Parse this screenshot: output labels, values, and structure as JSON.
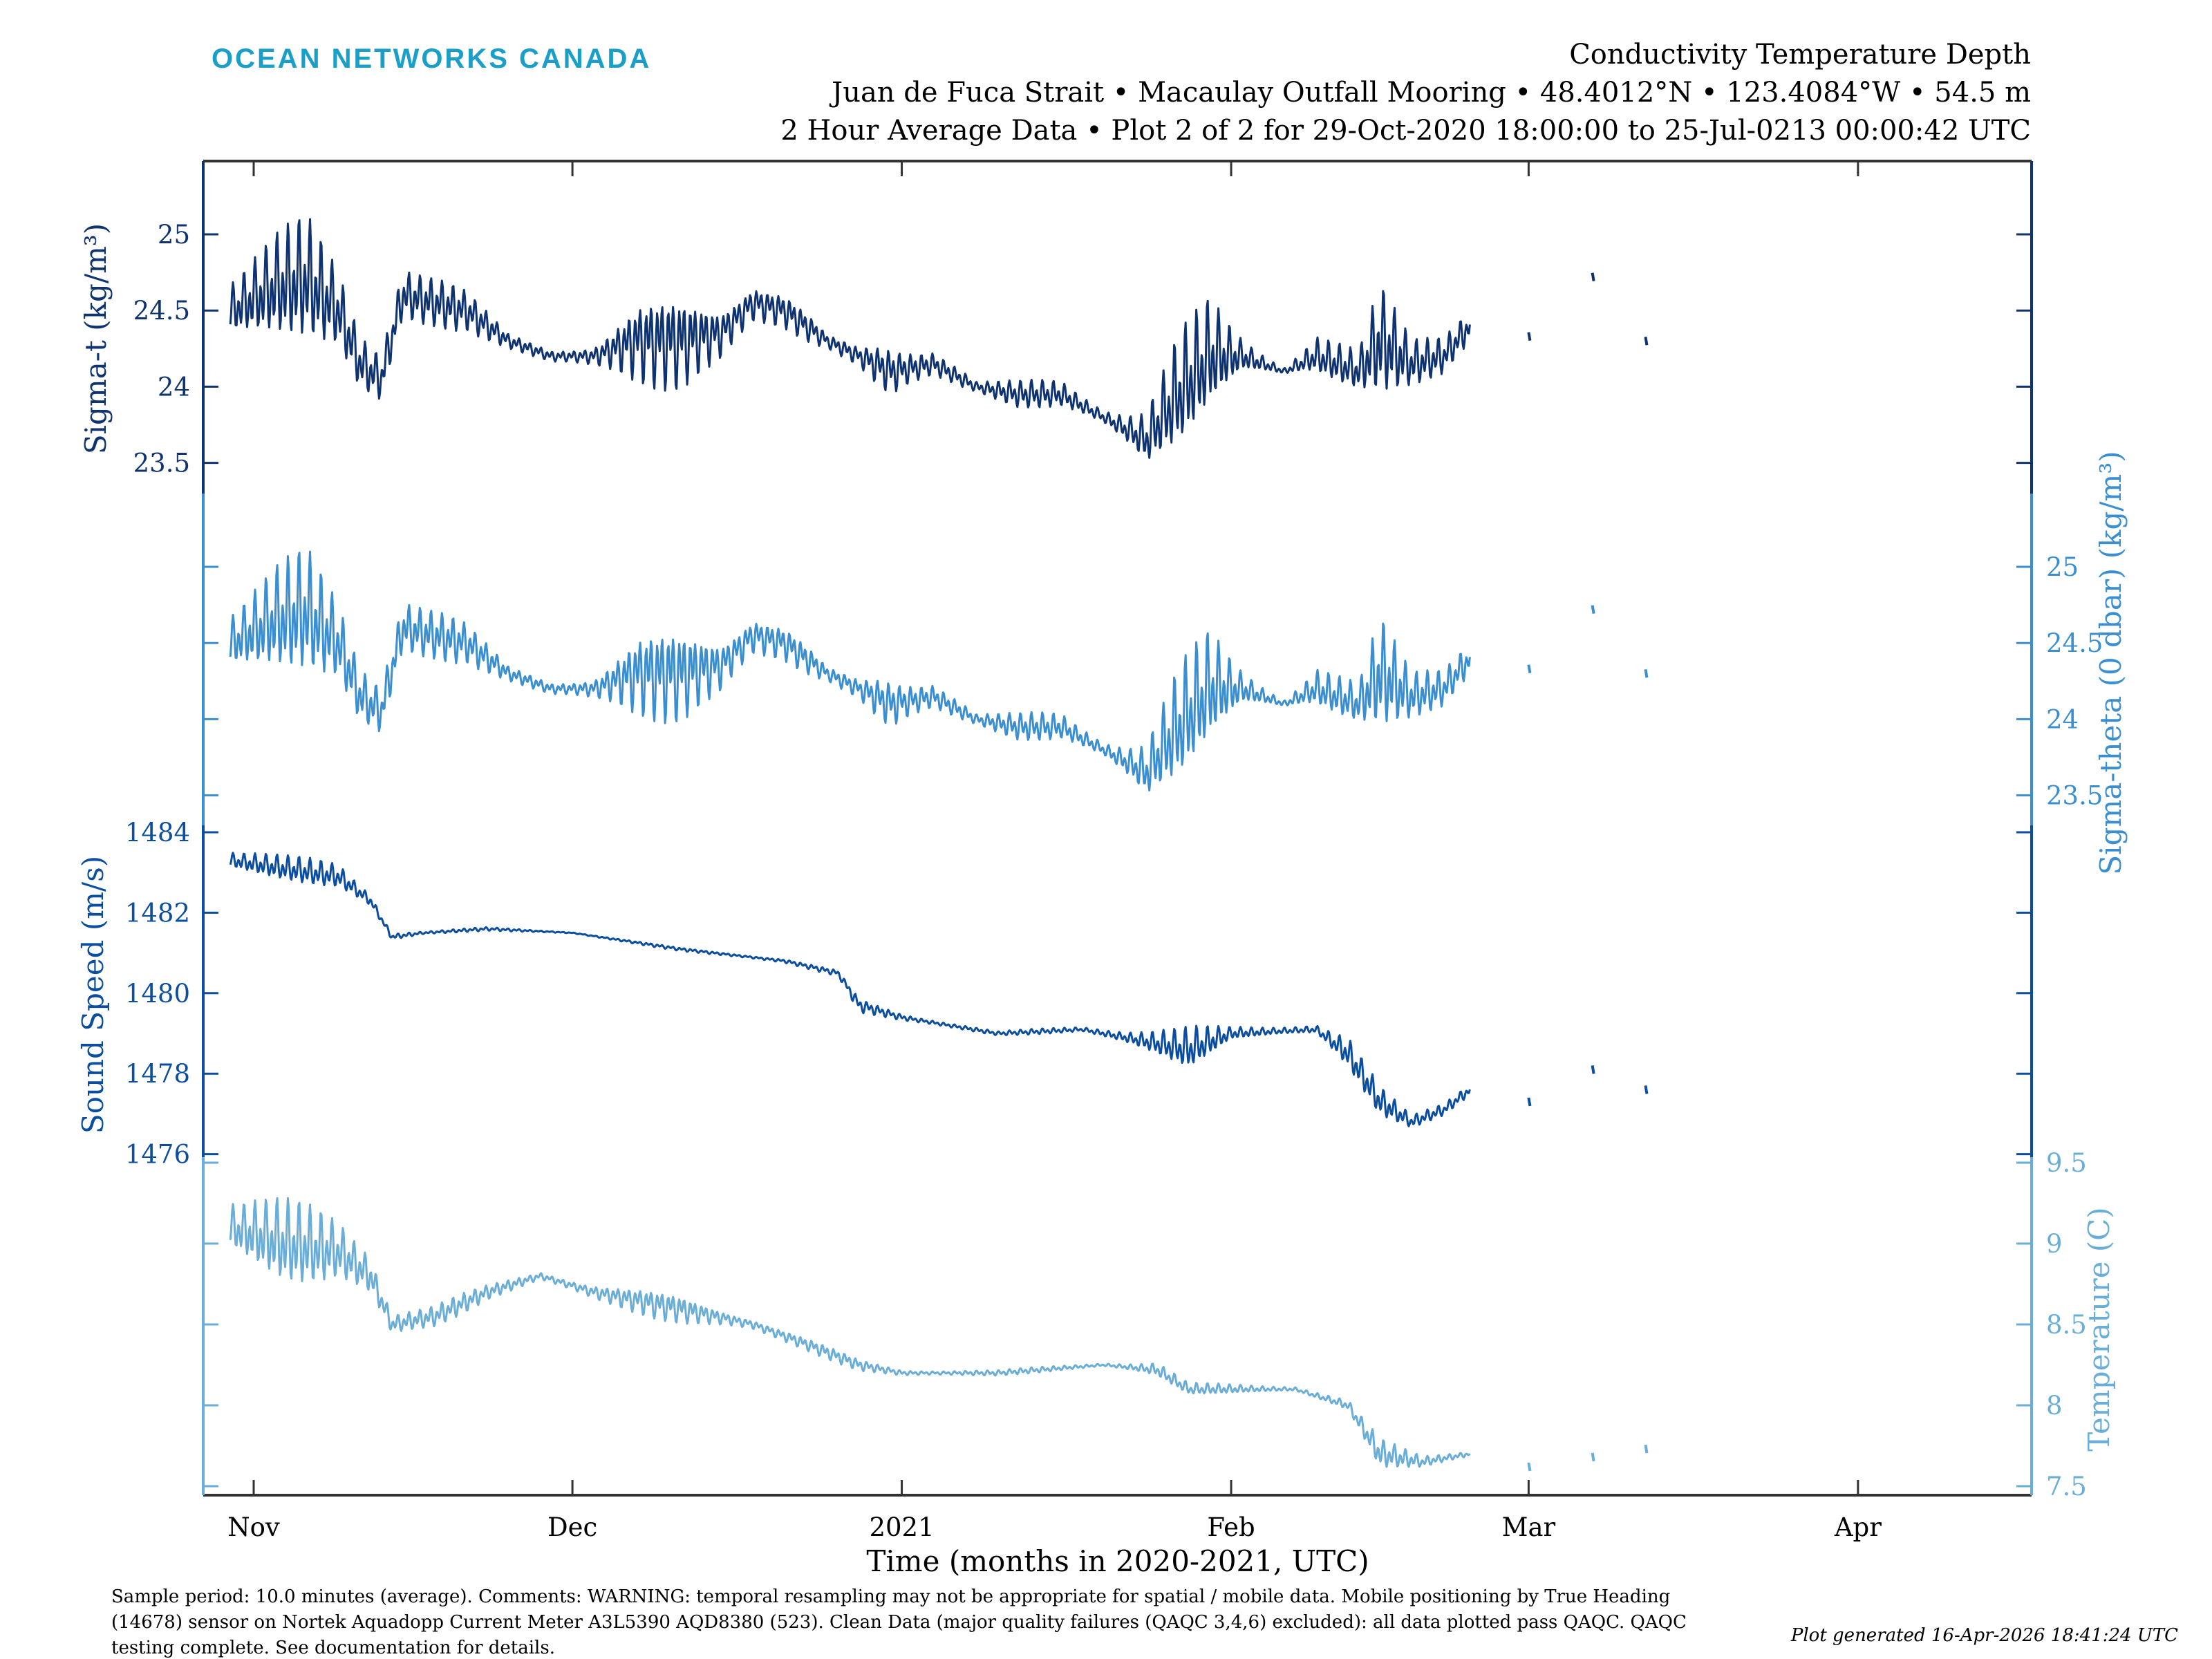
{
  "header": {
    "logo_text": "OCEAN NETWORKS CANADA",
    "title": "Conductivity Temperature Depth",
    "subtitle": "Juan de Fuca Strait • Macaulay Outfall Mooring • 48.4012°N • 123.4084°W • 54.5 m",
    "subtitle2": "2 Hour Average Data • Plot 2 of 2 for 29-Oct-2020 18:00:00 to 25-Jul-0213 00:00:42 UTC"
  },
  "footer": {
    "line1": "Sample period: 10.0 minutes (average). Comments: WARNING: temporal resampling may not be appropriate for spatial / mobile data. Mobile positioning by True Heading",
    "line2": "(14678) sensor on Nortek Aquadopp Current Meter A3L5390 AQD8380 (523). Clean Data (major quality failures (QAQC 3,4,6) excluded): all data plotted pass QAQC. QAQC",
    "line3": "testing complete. See documentation for details.",
    "generated": "Plot generated 16-Apr-2026 18:41:24 UTC"
  },
  "colors": {
    "logo": "#1a9fc8",
    "sigma_t": "#0e3370",
    "sigma_theta": "#3b8fd0",
    "sound_speed": "#0b4d9e",
    "temperature": "#6aaed8",
    "frame": "#333333"
  },
  "chart_data": {
    "type": "line",
    "xlabel": "Time (months in 2020-2021, UTC)",
    "x_units": "days since 2020-11-01",
    "xlim": [
      -4.8,
      167.5
    ],
    "x_ticks": [
      {
        "day": 0,
        "label": "Nov"
      },
      {
        "day": 30,
        "label": "Dec"
      },
      {
        "day": 61,
        "label": "2021"
      },
      {
        "day": 92,
        "label": "Feb"
      },
      {
        "day": 120,
        "label": "Mar"
      },
      {
        "day": 151,
        "label": "Apr"
      }
    ],
    "series": [
      {
        "key": "sigma_t",
        "name": "Sigma-t",
        "ylabel": "Sigma-t (kg/m³)",
        "axis_side": "left",
        "ticks": [
          "25",
          "24.5",
          "24",
          "23.5"
        ],
        "points_day_mean_amplitude": [
          [
            -2.2,
            24.5,
            0.35
          ],
          [
            2,
            24.65,
            0.4
          ],
          [
            5,
            24.7,
            0.45
          ],
          [
            8,
            24.5,
            0.35
          ],
          [
            10,
            24.15,
            0.35
          ],
          [
            12,
            24.05,
            0.4
          ],
          [
            14,
            24.6,
            0.4
          ],
          [
            17,
            24.55,
            0.25
          ],
          [
            20,
            24.5,
            0.15
          ],
          [
            24,
            24.3,
            0.06
          ],
          [
            28,
            24.2,
            0.08
          ],
          [
            32,
            24.2,
            0.12
          ],
          [
            36,
            24.3,
            0.3
          ],
          [
            40,
            24.3,
            0.35
          ],
          [
            44,
            24.35,
            0.3
          ],
          [
            47,
            24.55,
            0.3
          ],
          [
            50,
            24.5,
            0.2
          ],
          [
            54,
            24.3,
            0.05
          ],
          [
            57,
            24.2,
            0.07
          ],
          [
            60,
            24.1,
            0.25
          ],
          [
            64,
            24.15,
            0.2
          ],
          [
            68,
            24.0,
            0.05
          ],
          [
            72,
            23.95,
            0.1
          ],
          [
            76,
            23.95,
            0.12
          ],
          [
            80,
            23.8,
            0.1
          ],
          [
            84,
            23.65,
            0.3
          ],
          [
            87,
            23.95,
            0.45
          ],
          [
            90,
            24.2,
            0.4
          ],
          [
            93,
            24.2,
            0.15
          ],
          [
            97,
            24.1,
            0.05
          ],
          [
            100,
            24.2,
            0.25
          ],
          [
            104,
            24.1,
            0.15
          ],
          [
            106,
            24.3,
            0.4
          ],
          [
            109,
            24.15,
            0.2
          ],
          [
            112,
            24.2,
            0.25
          ],
          [
            114.5,
            24.4,
            0.3
          ]
        ],
        "sporadic": [
          [
            120,
            24.33
          ],
          [
            126,
            24.72
          ],
          [
            131,
            24.3
          ]
        ]
      },
      {
        "key": "sigma_theta",
        "name": "Sigma-theta (0 dbar)",
        "ylabel": "Sigma-theta (0 dbar) (kg/m³)",
        "axis_side": "right",
        "ticks": [
          "25",
          "24.5",
          "24",
          "23.5"
        ],
        "points_day_mean_amplitude": [
          [
            -2.2,
            24.5,
            0.35
          ],
          [
            2,
            24.65,
            0.4
          ],
          [
            5,
            24.7,
            0.45
          ],
          [
            8,
            24.5,
            0.35
          ],
          [
            10,
            24.15,
            0.35
          ],
          [
            12,
            24.05,
            0.4
          ],
          [
            14,
            24.6,
            0.4
          ],
          [
            17,
            24.55,
            0.25
          ],
          [
            20,
            24.5,
            0.15
          ],
          [
            24,
            24.3,
            0.06
          ],
          [
            28,
            24.2,
            0.08
          ],
          [
            32,
            24.2,
            0.12
          ],
          [
            36,
            24.3,
            0.3
          ],
          [
            40,
            24.3,
            0.35
          ],
          [
            44,
            24.35,
            0.3
          ],
          [
            47,
            24.55,
            0.3
          ],
          [
            50,
            24.5,
            0.2
          ],
          [
            54,
            24.3,
            0.05
          ],
          [
            57,
            24.2,
            0.07
          ],
          [
            60,
            24.1,
            0.25
          ],
          [
            64,
            24.15,
            0.2
          ],
          [
            68,
            24.0,
            0.05
          ],
          [
            72,
            23.95,
            0.1
          ],
          [
            76,
            23.95,
            0.12
          ],
          [
            80,
            23.8,
            0.1
          ],
          [
            84,
            23.65,
            0.3
          ],
          [
            87,
            23.95,
            0.45
          ],
          [
            90,
            24.2,
            0.4
          ],
          [
            93,
            24.2,
            0.15
          ],
          [
            97,
            24.1,
            0.05
          ],
          [
            100,
            24.2,
            0.25
          ],
          [
            104,
            24.1,
            0.15
          ],
          [
            106,
            24.3,
            0.4
          ],
          [
            109,
            24.15,
            0.2
          ],
          [
            112,
            24.2,
            0.25
          ],
          [
            114.5,
            24.4,
            0.3
          ]
        ],
        "sporadic": [
          [
            120,
            24.33
          ],
          [
            126,
            24.72
          ],
          [
            131,
            24.3
          ]
        ]
      },
      {
        "key": "sound_speed",
        "name": "Sound Speed",
        "ylabel": "Sound Speed (m/s)",
        "axis_side": "left",
        "ticks": [
          "1484",
          "1482",
          "1480",
          "1478",
          "1476"
        ],
        "points_day_mean_amplitude": [
          [
            -2.2,
            1483.3,
            0.4
          ],
          [
            3,
            1483.1,
            0.35
          ],
          [
            8,
            1482.9,
            0.4
          ],
          [
            11,
            1482.3,
            0.3
          ],
          [
            13,
            1481.4,
            0.2
          ],
          [
            16,
            1481.5,
            0.05
          ],
          [
            22,
            1481.6,
            0.05
          ],
          [
            30,
            1481.5,
            0.03
          ],
          [
            40,
            1481.1,
            0.05
          ],
          [
            50,
            1480.8,
            0.08
          ],
          [
            55,
            1480.5,
            0.08
          ],
          [
            57,
            1479.7,
            0.2
          ],
          [
            61,
            1479.4,
            0.15
          ],
          [
            70,
            1479.0,
            0.06
          ],
          [
            78,
            1479.1,
            0.1
          ],
          [
            84,
            1478.8,
            0.4
          ],
          [
            88,
            1478.6,
            0.6
          ],
          [
            92,
            1479.0,
            0.2
          ],
          [
            100,
            1479.1,
            0.2
          ],
          [
            103,
            1478.5,
            0.5
          ],
          [
            106,
            1477.3,
            0.4
          ],
          [
            109,
            1476.8,
            0.2
          ],
          [
            112,
            1477.1,
            0.3
          ],
          [
            114.5,
            1477.6,
            0.4
          ]
        ],
        "sporadic": [
          [
            120,
            1477.3
          ],
          [
            126,
            1478.1
          ],
          [
            131,
            1477.6
          ]
        ]
      },
      {
        "key": "temperature",
        "name": "Temperature",
        "ylabel": "Temperature (C)",
        "axis_side": "right",
        "ticks": [
          "9.5",
          "9",
          "8.5",
          "8",
          "7.5"
        ],
        "points_day_mean_amplitude": [
          [
            -2.2,
            9.1,
            0.3
          ],
          [
            3,
            9.0,
            0.3
          ],
          [
            8,
            8.95,
            0.25
          ],
          [
            11,
            8.8,
            0.25
          ],
          [
            13,
            8.5,
            0.15
          ],
          [
            17,
            8.55,
            0.1
          ],
          [
            22,
            8.7,
            0.05
          ],
          [
            27,
            8.8,
            0.04
          ],
          [
            32,
            8.7,
            0.08
          ],
          [
            40,
            8.6,
            0.1
          ],
          [
            47,
            8.5,
            0.07
          ],
          [
            52,
            8.38,
            0.05
          ],
          [
            57,
            8.25,
            0.04
          ],
          [
            61,
            8.2,
            0.03
          ],
          [
            70,
            8.2,
            0.02
          ],
          [
            80,
            8.25,
            0.02
          ],
          [
            85,
            8.22,
            0.06
          ],
          [
            88,
            8.1,
            0.04
          ],
          [
            98,
            8.1,
            0.03
          ],
          [
            103,
            8.0,
            0.04
          ],
          [
            106,
            7.7,
            0.1
          ],
          [
            110,
            7.65,
            0.05
          ],
          [
            114.5,
            7.7,
            0.04
          ]
        ],
        "sporadic": [
          [
            120,
            7.62
          ],
          [
            126,
            7.68
          ],
          [
            131,
            7.73
          ]
        ]
      }
    ]
  }
}
